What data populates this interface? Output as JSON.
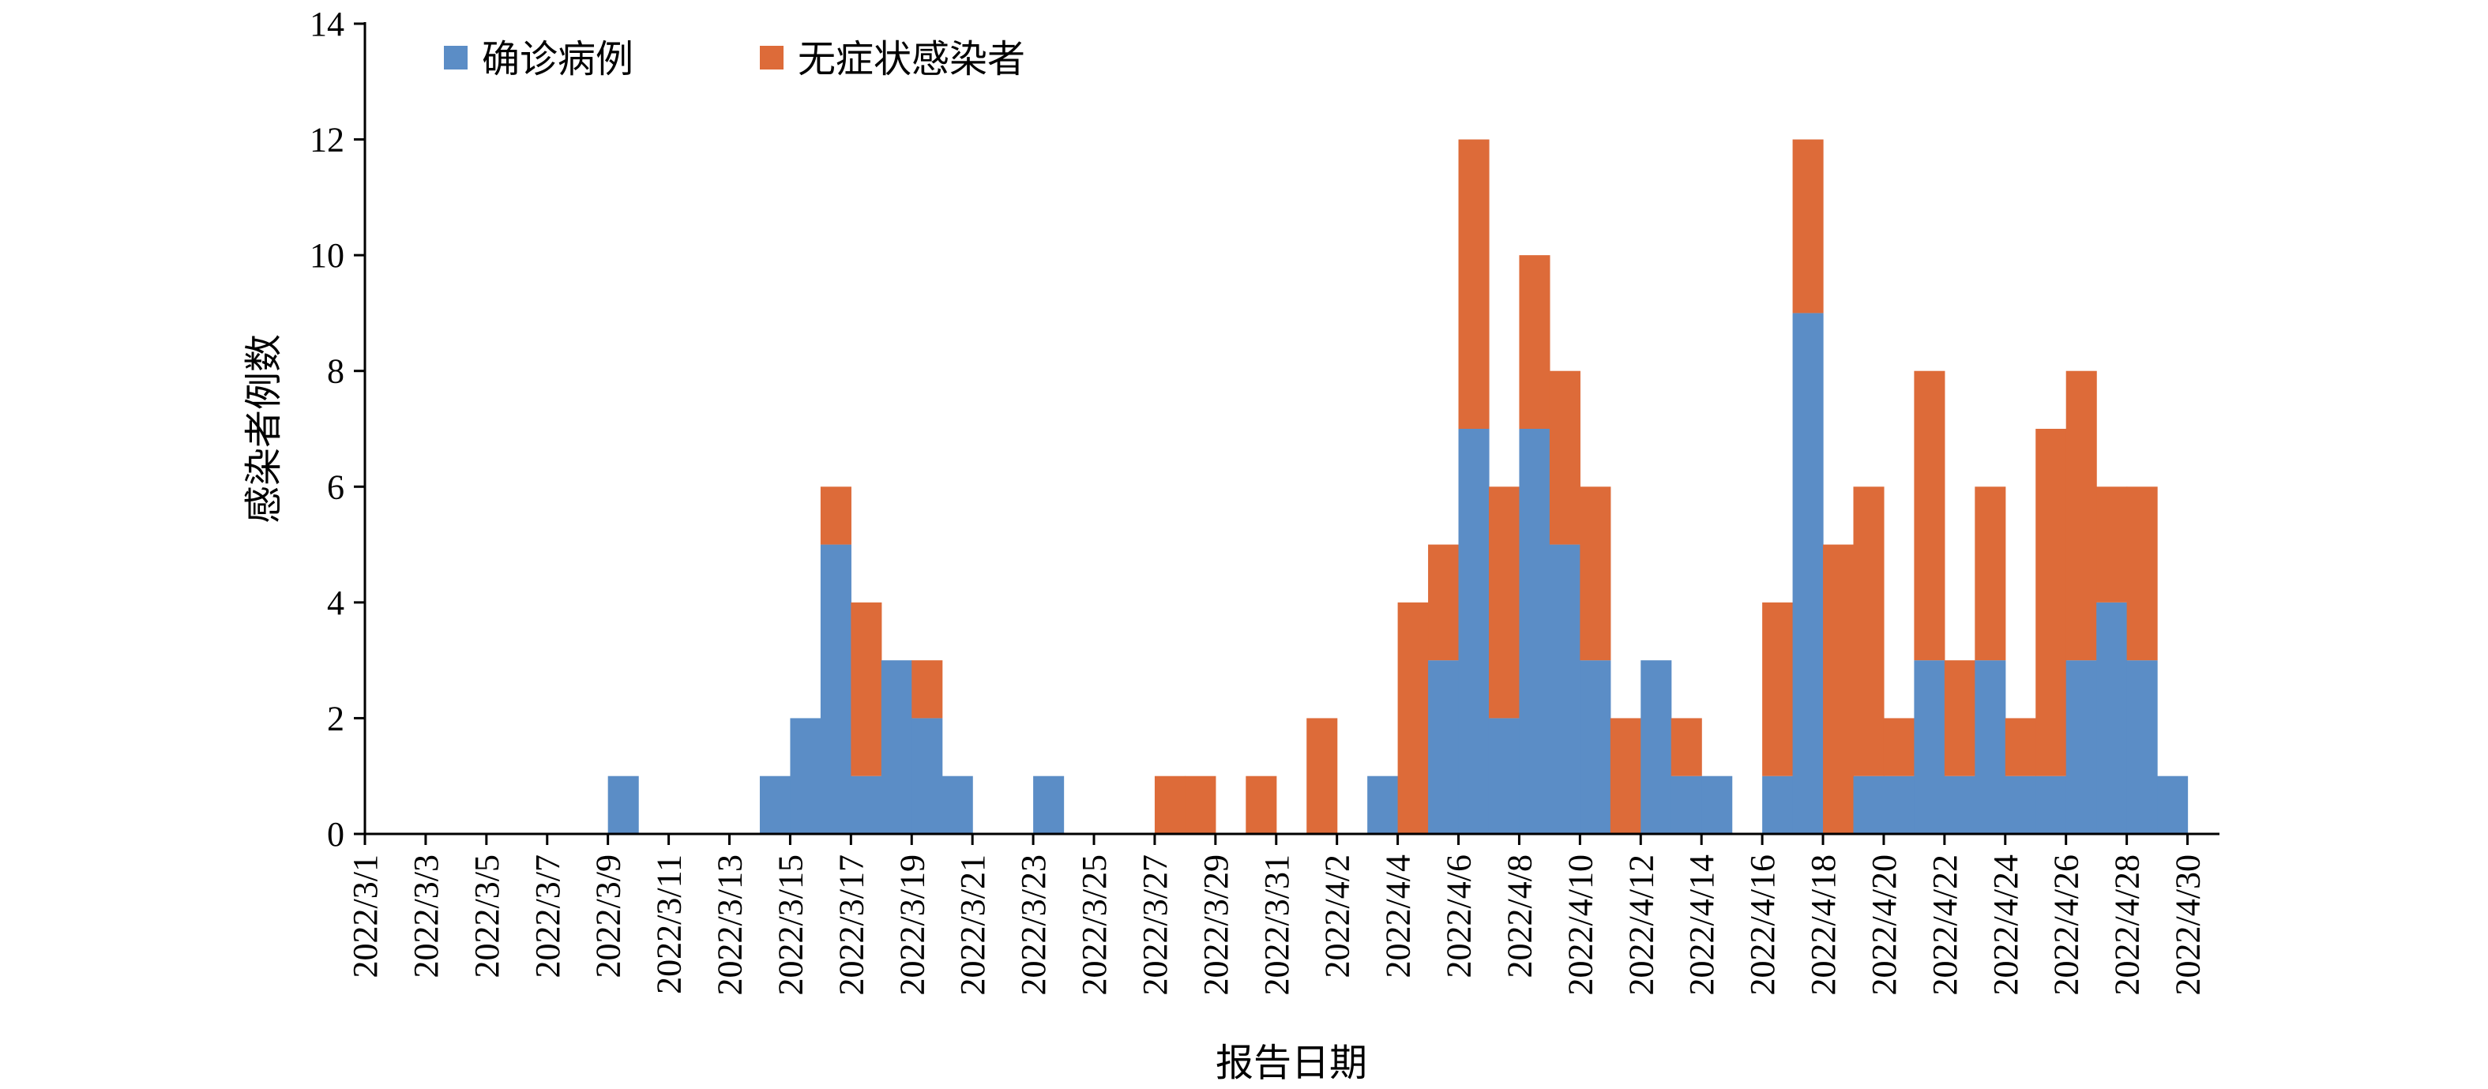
{
  "chart_data": {
    "type": "bar",
    "stacked": true,
    "xlabel": "报告日期",
    "ylabel": "感染者例数",
    "ylim": [
      0,
      14
    ],
    "yticks": [
      0,
      2,
      4,
      6,
      8,
      10,
      12,
      14
    ],
    "legend_position": "top-left",
    "grid": false,
    "categories": [
      "2022/3/1",
      "2022/3/2",
      "2022/3/3",
      "2022/3/4",
      "2022/3/5",
      "2022/3/6",
      "2022/3/7",
      "2022/3/8",
      "2022/3/9",
      "2022/3/10",
      "2022/3/11",
      "2022/3/12",
      "2022/3/13",
      "2022/3/14",
      "2022/3/15",
      "2022/3/16",
      "2022/3/17",
      "2022/3/18",
      "2022/3/19",
      "2022/3/20",
      "2022/3/21",
      "2022/3/22",
      "2022/3/23",
      "2022/3/24",
      "2022/3/25",
      "2022/3/26",
      "2022/3/27",
      "2022/3/28",
      "2022/3/29",
      "2022/3/30",
      "2022/3/31",
      "2022/4/1",
      "2022/4/2",
      "2022/4/3",
      "2022/4/4",
      "2022/4/5",
      "2022/4/6",
      "2022/4/7",
      "2022/4/8",
      "2022/4/9",
      "2022/4/10",
      "2022/4/11",
      "2022/4/12",
      "2022/4/13",
      "2022/4/14",
      "2022/4/15",
      "2022/4/16",
      "2022/4/17",
      "2022/4/18",
      "2022/4/19",
      "2022/4/20",
      "2022/4/21",
      "2022/4/22",
      "2022/4/23",
      "2022/4/24",
      "2022/4/25",
      "2022/4/26",
      "2022/4/27",
      "2022/4/28",
      "2022/4/29",
      "2022/4/30"
    ],
    "tick_labels": [
      "2022/3/1",
      "2022/3/3",
      "2022/3/5",
      "2022/3/7",
      "2022/3/9",
      "2022/3/11",
      "2022/3/13",
      "2022/3/15",
      "2022/3/17",
      "2022/3/19",
      "2022/3/21",
      "2022/3/23",
      "2022/3/25",
      "2022/3/27",
      "2022/3/29",
      "2022/3/31",
      "2022/4/2",
      "2022/4/4",
      "2022/4/6",
      "2022/4/8",
      "2022/4/10",
      "2022/4/12",
      "2022/4/14",
      "2022/4/16",
      "2022/4/18",
      "2022/4/20",
      "2022/4/22",
      "2022/4/24",
      "2022/4/26",
      "2022/4/28",
      "2022/4/30"
    ],
    "series": [
      {
        "name": "确诊病例",
        "color": "#5b8dc6",
        "values": [
          0,
          0,
          0,
          0,
          0,
          0,
          0,
          0,
          1,
          0,
          0,
          0,
          0,
          1,
          2,
          5,
          1,
          3,
          2,
          1,
          0,
          0,
          1,
          0,
          0,
          0,
          0,
          0,
          0,
          0,
          0,
          0,
          0,
          1,
          0,
          3,
          7,
          2,
          7,
          5,
          3,
          0,
          3,
          1,
          1,
          0,
          1,
          9,
          0,
          1,
          1,
          3,
          1,
          3,
          1,
          1,
          3,
          4,
          3,
          1,
          0
        ]
      },
      {
        "name": "无症状感染者",
        "color": "#dd6b39",
        "values": [
          0,
          0,
          0,
          0,
          0,
          0,
          0,
          0,
          0,
          0,
          0,
          0,
          0,
          0,
          0,
          1,
          3,
          0,
          1,
          0,
          0,
          0,
          0,
          0,
          0,
          0,
          1,
          1,
          0,
          1,
          0,
          2,
          0,
          0,
          4,
          2,
          5,
          4,
          3,
          3,
          3,
          2,
          0,
          1,
          0,
          0,
          3,
          3,
          5,
          5,
          1,
          5,
          2,
          3,
          1,
          6,
          5,
          2,
          3,
          0,
          0
        ]
      }
    ]
  }
}
